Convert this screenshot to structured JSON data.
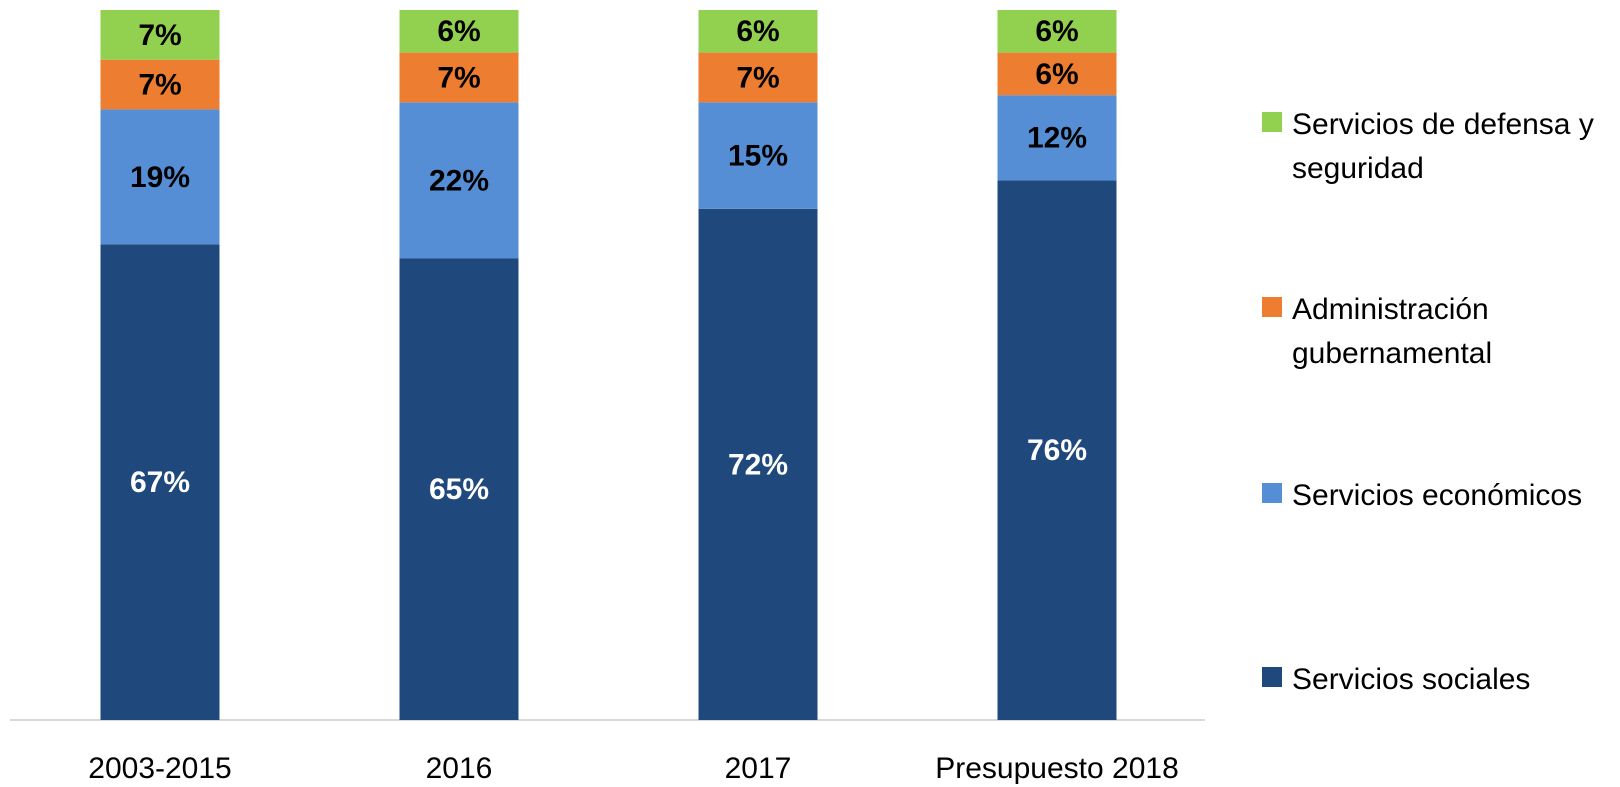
{
  "chart_data": {
    "type": "stacked_bar",
    "categories": [
      "2003-2015",
      "2016",
      "2017",
      "Presupuesto 2018"
    ],
    "series": [
      {
        "name": "Servicios sociales",
        "color": "#1f497d",
        "values": [
          67,
          65,
          72,
          76
        ],
        "value_labels": [
          "67%",
          "65%",
          "72%",
          "76%"
        ]
      },
      {
        "name": "Servicios económicos",
        "color": "#558ed5",
        "values": [
          19,
          22,
          15,
          12
        ],
        "value_labels": [
          "19%",
          "22%",
          "15%",
          "12%"
        ]
      },
      {
        "name": "Administración gubernamental",
        "color": "#ed7d31",
        "values": [
          7,
          7,
          7,
          6
        ],
        "value_labels": [
          "7%",
          "7%",
          "7%",
          "6%"
        ]
      },
      {
        "name": "Servicios de defensa y seguridad",
        "color": "#92d050",
        "values": [
          7,
          6,
          6,
          6
        ],
        "value_labels": [
          "7%",
          "6%",
          "6%",
          "6%"
        ]
      }
    ]
  }
}
